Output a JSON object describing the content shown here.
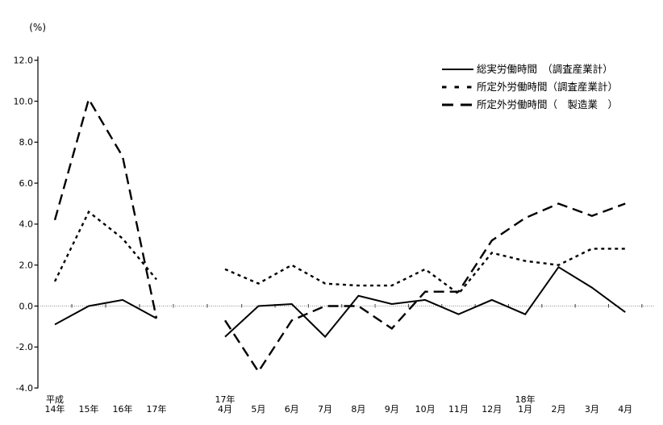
{
  "chart_data": {
    "type": "line",
    "title": "",
    "ylabel": "(%)",
    "xlabel": "",
    "ylim": [
      -4.0,
      12.0
    ],
    "yticks": [
      "12.0",
      "10.0",
      "8.0",
      "6.0",
      "4.0",
      "2.0",
      "0.0",
      "-2.0",
      "-4.0"
    ],
    "ytick_values": [
      12.0,
      10.0,
      8.0,
      6.0,
      4.0,
      2.0,
      0.0,
      -2.0,
      -4.0
    ],
    "grid": "zero-line-only",
    "zero_line_color": "#9a9a9a",
    "line_color": "#000000",
    "legend_position": "top-right",
    "x_sections": [
      {
        "id": "years",
        "tick_labels": [
          {
            "top": "平成",
            "bottom": "14年"
          },
          {
            "top": "",
            "bottom": "15年"
          },
          {
            "top": "",
            "bottom": "16年"
          },
          {
            "top": "",
            "bottom": "17年"
          }
        ]
      },
      {
        "id": "months",
        "tick_labels": [
          {
            "top": "17年",
            "bottom": "4月"
          },
          {
            "top": "",
            "bottom": "5月"
          },
          {
            "top": "",
            "bottom": "6月"
          },
          {
            "top": "",
            "bottom": "7月"
          },
          {
            "top": "",
            "bottom": "8月"
          },
          {
            "top": "",
            "bottom": "9月"
          },
          {
            "top": "",
            "bottom": "10月"
          },
          {
            "top": "",
            "bottom": "11月"
          },
          {
            "top": "",
            "bottom": "12月"
          },
          {
            "top": "18年",
            "bottom": "1月"
          },
          {
            "top": "",
            "bottom": "2月"
          },
          {
            "top": "",
            "bottom": "3月"
          },
          {
            "top": "",
            "bottom": "4月"
          }
        ]
      }
    ],
    "series": [
      {
        "name": "総実労働時間　（調査産業計）",
        "style": "solid",
        "color": "#000000",
        "years": [
          -0.9,
          0.0,
          0.3,
          -0.6
        ],
        "months": [
          -1.5,
          0.0,
          0.1,
          -1.5,
          0.5,
          0.1,
          0.3,
          -0.4,
          0.3,
          -0.4,
          1.9,
          0.9,
          -0.3
        ]
      },
      {
        "name": "所定外労働時間（調査産業計）",
        "style": "dotted",
        "color": "#000000",
        "years": [
          1.2,
          4.6,
          3.3,
          1.3
        ],
        "months": [
          1.8,
          1.1,
          2.0,
          1.1,
          1.0,
          1.0,
          1.8,
          0.6,
          2.6,
          2.2,
          2.0,
          2.8,
          2.8
        ]
      },
      {
        "name": "所定外労働時間（　製造業　）",
        "style": "dashed",
        "color": "#000000",
        "years": [
          4.2,
          10.1,
          7.3,
          -0.6
        ],
        "months": [
          -0.7,
          -3.2,
          -0.7,
          0.0,
          0.0,
          -1.1,
          0.7,
          0.7,
          3.2,
          4.3,
          5.0,
          4.4,
          5.0
        ]
      }
    ]
  }
}
